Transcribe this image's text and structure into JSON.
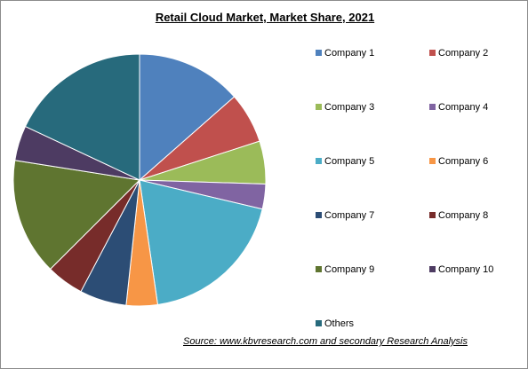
{
  "chart_data": {
    "type": "pie",
    "title": "Retail Cloud Market, Market Share, 2021",
    "start_angle_deg": 0,
    "direction": "clockwise",
    "legend_position": "right",
    "slices": [
      {
        "name": "Company 1",
        "value": 13.5,
        "color": "#4f81bd"
      },
      {
        "name": "Company 2",
        "value": 6.5,
        "color": "#c0504d"
      },
      {
        "name": "Company 3",
        "value": 5.5,
        "color": "#9bbb59"
      },
      {
        "name": "Company 4",
        "value": 3.2,
        "color": "#8064a2"
      },
      {
        "name": "Company 5",
        "value": 19.0,
        "color": "#4bacc6"
      },
      {
        "name": "Company 6",
        "value": 4.0,
        "color": "#f79646"
      },
      {
        "name": "Company 7",
        "value": 6.0,
        "color": "#2c4d75"
      },
      {
        "name": "Company 8",
        "value": 4.8,
        "color": "#772c2a"
      },
      {
        "name": "Company 9",
        "value": 15.0,
        "color": "#5f7530"
      },
      {
        "name": "Company 10",
        "value": 4.5,
        "color": "#4d3b62"
      },
      {
        "name": "Others",
        "value": 18.0,
        "color": "#276a7c"
      }
    ]
  },
  "source_text": "Source:  www.kbvresearch.com  and secondary Research  Analysis"
}
